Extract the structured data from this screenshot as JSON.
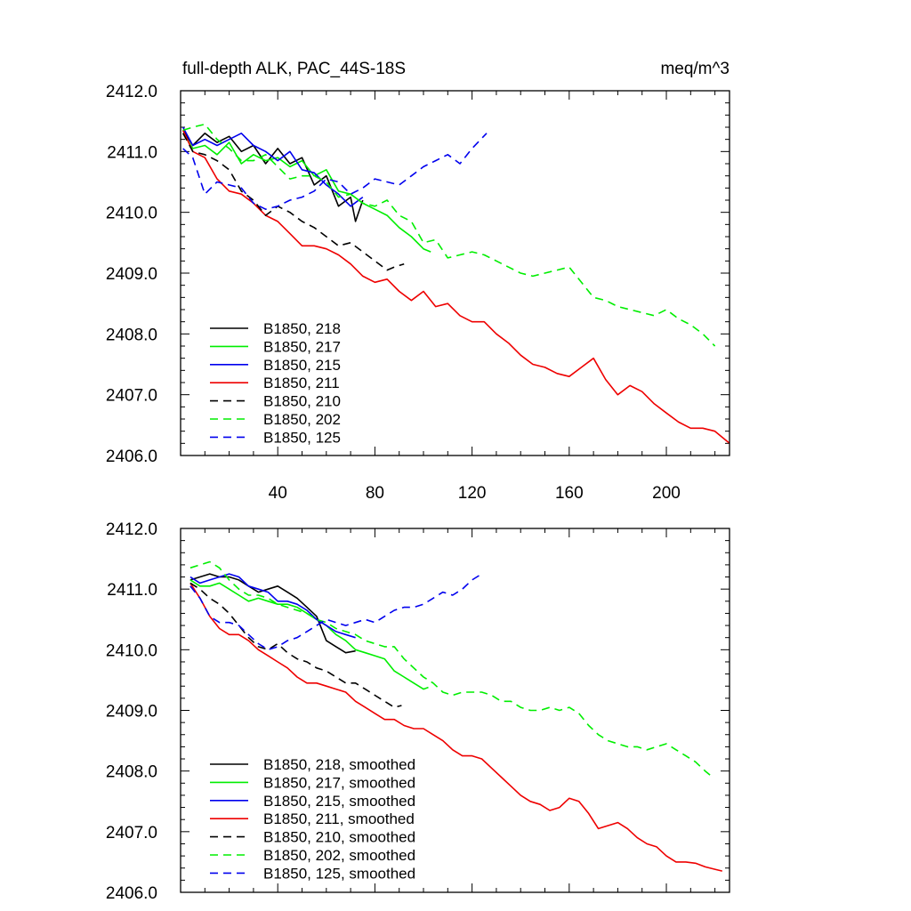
{
  "chart_data": [
    {
      "type": "line",
      "title": "full-depth ALK, PAC_44S-18S",
      "units": "meq/m^3",
      "xlabel": "",
      "ylabel": "",
      "xlim": [
        0,
        226
      ],
      "ylim": [
        2406.0,
        2412.0
      ],
      "xticks": [
        40,
        80,
        120,
        160,
        200
      ],
      "xtick_labels": [
        "40",
        "80",
        "120",
        "160",
        "200"
      ],
      "yticks": [
        2406.0,
        2407.0,
        2408.0,
        2409.0,
        2410.0,
        2411.0,
        2412.0
      ],
      "ytick_labels": [
        "2406.0",
        "2407.0",
        "2408.0",
        "2409.0",
        "2410.0",
        "2411.0",
        "2412.0"
      ],
      "legend_position": "bottom-left",
      "grid": false,
      "series": [
        {
          "name": "B1850, 218",
          "color": "#000000",
          "dash": "solid",
          "x": [
            1,
            5,
            10,
            15,
            20,
            25,
            30,
            35,
            40,
            45,
            50,
            55,
            60,
            65,
            70,
            72,
            75
          ],
          "y": [
            2411.35,
            2411.1,
            2411.3,
            2411.15,
            2411.25,
            2411.0,
            2411.1,
            2410.8,
            2411.05,
            2410.8,
            2410.9,
            2410.45,
            2410.6,
            2410.1,
            2410.25,
            2409.85,
            2410.2
          ]
        },
        {
          "name": "B1850, 217",
          "color": "#00ee00",
          "dash": "solid",
          "x": [
            1,
            5,
            10,
            15,
            20,
            25,
            30,
            35,
            40,
            45,
            50,
            55,
            60,
            65,
            70,
            75,
            80,
            85,
            90,
            95,
            100,
            103
          ],
          "y": [
            2411.3,
            2411.05,
            2411.1,
            2410.95,
            2411.15,
            2410.8,
            2410.95,
            2410.85,
            2410.9,
            2410.75,
            2410.85,
            2410.6,
            2410.7,
            2410.35,
            2410.3,
            2410.15,
            2410.05,
            2409.95,
            2409.75,
            2409.6,
            2409.4,
            2409.35
          ]
        },
        {
          "name": "B1850, 215",
          "color": "#0000ee",
          "dash": "solid",
          "x": [
            1,
            5,
            10,
            15,
            20,
            25,
            30,
            35,
            40,
            45,
            50,
            55,
            60,
            65,
            70,
            75
          ],
          "y": [
            2411.4,
            2411.1,
            2411.2,
            2411.1,
            2411.2,
            2411.3,
            2411.1,
            2411.0,
            2410.85,
            2411.0,
            2410.7,
            2410.65,
            2410.45,
            2410.3,
            2410.1,
            2410.25
          ]
        },
        {
          "name": "B1850, 211",
          "color": "#ee0000",
          "dash": "solid",
          "x": [
            1,
            5,
            10,
            15,
            20,
            25,
            30,
            35,
            40,
            45,
            50,
            55,
            60,
            65,
            70,
            75,
            80,
            85,
            90,
            95,
            100,
            105,
            110,
            115,
            120,
            125,
            130,
            135,
            140,
            145,
            150,
            155,
            160,
            165,
            170,
            175,
            180,
            185,
            190,
            195,
            200,
            205,
            210,
            215,
            220,
            226
          ],
          "y": [
            2411.35,
            2411.0,
            2410.9,
            2410.55,
            2410.35,
            2410.3,
            2410.15,
            2409.95,
            2409.85,
            2409.65,
            2409.45,
            2409.45,
            2409.4,
            2409.3,
            2409.15,
            2408.95,
            2408.85,
            2408.9,
            2408.7,
            2408.55,
            2408.7,
            2408.45,
            2408.5,
            2408.3,
            2408.2,
            2408.2,
            2408.0,
            2407.85,
            2407.65,
            2407.5,
            2407.45,
            2407.35,
            2407.3,
            2407.45,
            2407.6,
            2407.25,
            2407.0,
            2407.15,
            2407.05,
            2406.85,
            2406.7,
            2406.55,
            2406.45,
            2406.45,
            2406.4,
            2406.2
          ]
        },
        {
          "name": "B1850, 210",
          "color": "#000000",
          "dash": "dashed",
          "x": [
            1,
            5,
            10,
            15,
            20,
            25,
            30,
            35,
            40,
            45,
            50,
            55,
            60,
            65,
            70,
            75,
            80,
            85,
            88,
            92
          ],
          "y": [
            2411.3,
            2411.0,
            2410.95,
            2410.85,
            2410.7,
            2410.35,
            2410.2,
            2409.95,
            2410.1,
            2410.0,
            2409.85,
            2409.75,
            2409.6,
            2409.45,
            2409.5,
            2409.35,
            2409.2,
            2409.05,
            2409.1,
            2409.15
          ]
        },
        {
          "name": "B1850, 202",
          "color": "#00ee00",
          "dash": "dashed",
          "x": [
            1,
            5,
            10,
            15,
            20,
            25,
            30,
            35,
            40,
            45,
            50,
            55,
            60,
            65,
            70,
            75,
            80,
            85,
            90,
            95,
            100,
            105,
            110,
            115,
            120,
            125,
            130,
            135,
            140,
            145,
            150,
            155,
            160,
            165,
            170,
            175,
            180,
            185,
            190,
            195,
            200,
            205,
            210,
            215,
            220
          ],
          "y": [
            2411.35,
            2411.4,
            2411.45,
            2411.2,
            2411.05,
            2410.85,
            2410.85,
            2410.95,
            2410.75,
            2410.55,
            2410.6,
            2410.6,
            2410.5,
            2410.25,
            2410.3,
            2410.15,
            2410.1,
            2410.2,
            2409.95,
            2409.85,
            2409.5,
            2409.55,
            2409.25,
            2409.3,
            2409.35,
            2409.3,
            2409.2,
            2409.1,
            2409.0,
            2408.95,
            2409.0,
            2409.05,
            2409.1,
            2408.85,
            2408.6,
            2408.55,
            2408.45,
            2408.4,
            2408.35,
            2408.3,
            2408.4,
            2408.25,
            2408.15,
            2408.0,
            2407.8
          ]
        },
        {
          "name": "B1850, 125",
          "color": "#0000ee",
          "dash": "dashed",
          "x": [
            1,
            5,
            10,
            15,
            20,
            25,
            30,
            35,
            40,
            45,
            50,
            55,
            60,
            65,
            70,
            75,
            80,
            85,
            90,
            95,
            100,
            105,
            110,
            115,
            120,
            126
          ],
          "y": [
            2411.05,
            2410.9,
            2410.3,
            2410.5,
            2410.45,
            2410.4,
            2410.15,
            2410.05,
            2410.1,
            2410.2,
            2410.25,
            2410.35,
            2410.55,
            2410.5,
            2410.3,
            2410.4,
            2410.55,
            2410.5,
            2410.45,
            2410.6,
            2410.75,
            2410.85,
            2410.95,
            2410.8,
            2411.05,
            2411.3
          ]
        }
      ]
    },
    {
      "type": "line",
      "title": "",
      "xlabel": "",
      "ylabel": "",
      "xlim": [
        0,
        226
      ],
      "ylim": [
        2406.0,
        2412.0
      ],
      "xticks": [
        40,
        80,
        120,
        160,
        200
      ],
      "xtick_labels": [],
      "yticks": [
        2406.0,
        2407.0,
        2408.0,
        2409.0,
        2410.0,
        2411.0,
        2412.0
      ],
      "ytick_labels": [
        "2406.0",
        "2407.0",
        "2408.0",
        "2409.0",
        "2410.0",
        "2411.0",
        "2412.0"
      ],
      "legend_position": "bottom-left",
      "grid": false,
      "series": [
        {
          "name": "B1850, 218, smoothed",
          "color": "#000000",
          "dash": "solid",
          "x": [
            4,
            8,
            12,
            16,
            20,
            24,
            28,
            32,
            36,
            40,
            44,
            48,
            52,
            56,
            60,
            64,
            68,
            72
          ],
          "y": [
            2411.15,
            2411.2,
            2411.25,
            2411.2,
            2411.2,
            2411.15,
            2411.05,
            2410.95,
            2411.0,
            2411.05,
            2410.95,
            2410.85,
            2410.7,
            2410.55,
            2410.15,
            2410.05,
            2409.95,
            2409.98
          ]
        },
        {
          "name": "B1850, 217, smoothed",
          "color": "#00ee00",
          "dash": "solid",
          "x": [
            4,
            8,
            12,
            16,
            20,
            24,
            28,
            32,
            36,
            40,
            44,
            48,
            52,
            56,
            60,
            64,
            68,
            72,
            76,
            80,
            84,
            88,
            92,
            96,
            100,
            102
          ],
          "y": [
            2411.15,
            2411.05,
            2411.05,
            2411.1,
            2411.0,
            2410.9,
            2410.8,
            2410.85,
            2410.8,
            2410.75,
            2410.75,
            2410.7,
            2410.6,
            2410.5,
            2410.4,
            2410.25,
            2410.15,
            2410.0,
            2409.95,
            2409.9,
            2409.85,
            2409.65,
            2409.55,
            2409.45,
            2409.35,
            2409.38
          ]
        },
        {
          "name": "B1850, 215, smoothed",
          "color": "#0000ee",
          "dash": "solid",
          "x": [
            4,
            8,
            12,
            16,
            20,
            24,
            28,
            32,
            36,
            40,
            44,
            48,
            52,
            56,
            60,
            64,
            68,
            72
          ],
          "y": [
            2411.2,
            2411.1,
            2411.15,
            2411.2,
            2411.25,
            2411.2,
            2411.05,
            2411.0,
            2410.95,
            2410.8,
            2410.8,
            2410.75,
            2410.65,
            2410.5,
            2410.4,
            2410.3,
            2410.25,
            2410.2
          ]
        },
        {
          "name": "B1850, 211, smoothed",
          "color": "#ee0000",
          "dash": "solid",
          "x": [
            4,
            8,
            12,
            16,
            20,
            24,
            28,
            32,
            36,
            40,
            44,
            48,
            52,
            56,
            60,
            64,
            68,
            72,
            76,
            80,
            84,
            88,
            92,
            96,
            100,
            104,
            108,
            112,
            116,
            120,
            124,
            128,
            132,
            136,
            140,
            144,
            148,
            152,
            156,
            160,
            164,
            168,
            172,
            176,
            180,
            184,
            188,
            192,
            196,
            200,
            204,
            208,
            212,
            216,
            220,
            223
          ],
          "y": [
            2411.1,
            2410.85,
            2410.55,
            2410.35,
            2410.25,
            2410.25,
            2410.15,
            2410.0,
            2409.9,
            2409.8,
            2409.7,
            2409.55,
            2409.45,
            2409.45,
            2409.4,
            2409.35,
            2409.3,
            2409.15,
            2409.05,
            2408.95,
            2408.85,
            2408.85,
            2408.75,
            2408.7,
            2408.7,
            2408.6,
            2408.5,
            2408.35,
            2408.25,
            2408.25,
            2408.2,
            2408.05,
            2407.9,
            2407.75,
            2407.6,
            2407.5,
            2407.45,
            2407.35,
            2407.4,
            2407.55,
            2407.5,
            2407.3,
            2407.05,
            2407.1,
            2407.15,
            2407.05,
            2406.9,
            2406.8,
            2406.75,
            2406.6,
            2406.5,
            2406.5,
            2406.48,
            2406.42,
            2406.38,
            2406.35
          ]
        },
        {
          "name": "B1850, 210, smoothed",
          "color": "#000000",
          "dash": "dashed",
          "x": [
            4,
            8,
            12,
            16,
            20,
            24,
            28,
            32,
            36,
            40,
            44,
            48,
            52,
            56,
            60,
            64,
            68,
            72,
            76,
            80,
            84,
            88,
            91
          ],
          "y": [
            2411.1,
            2411.0,
            2410.85,
            2410.75,
            2410.6,
            2410.4,
            2410.2,
            2410.05,
            2410.0,
            2410.1,
            2409.95,
            2409.85,
            2409.8,
            2409.7,
            2409.65,
            2409.55,
            2409.45,
            2409.45,
            2409.35,
            2409.25,
            2409.15,
            2409.05,
            2409.08
          ]
        },
        {
          "name": "B1850, 202, smoothed",
          "color": "#00ee00",
          "dash": "dashed",
          "x": [
            4,
            8,
            12,
            16,
            20,
            24,
            28,
            32,
            36,
            40,
            44,
            48,
            52,
            56,
            60,
            64,
            68,
            72,
            76,
            80,
            84,
            88,
            92,
            96,
            100,
            104,
            108,
            112,
            116,
            120,
            124,
            128,
            132,
            136,
            140,
            144,
            148,
            152,
            156,
            160,
            164,
            168,
            172,
            176,
            180,
            184,
            188,
            192,
            196,
            200,
            204,
            208,
            212,
            216,
            219
          ],
          "y": [
            2411.35,
            2411.4,
            2411.45,
            2411.35,
            2411.15,
            2411.0,
            2410.9,
            2410.9,
            2410.85,
            2410.75,
            2410.7,
            2410.65,
            2410.6,
            2410.5,
            2410.45,
            2410.35,
            2410.3,
            2410.25,
            2410.15,
            2410.1,
            2410.05,
            2410.05,
            2409.85,
            2409.7,
            2409.55,
            2409.45,
            2409.3,
            2409.25,
            2409.3,
            2409.3,
            2409.3,
            2409.25,
            2409.15,
            2409.15,
            2409.05,
            2409.0,
            2409.0,
            2409.05,
            2409.0,
            2409.05,
            2408.95,
            2408.75,
            2408.6,
            2408.5,
            2408.45,
            2408.4,
            2408.4,
            2408.35,
            2408.4,
            2408.45,
            2408.35,
            2408.25,
            2408.15,
            2408.0,
            2407.9
          ]
        },
        {
          "name": "B1850, 125, smoothed",
          "color": "#0000ee",
          "dash": "dashed",
          "x": [
            4,
            8,
            12,
            16,
            20,
            24,
            28,
            32,
            36,
            40,
            44,
            48,
            52,
            56,
            60,
            64,
            68,
            72,
            76,
            80,
            84,
            88,
            92,
            96,
            100,
            104,
            108,
            112,
            116,
            120,
            124
          ],
          "y": [
            2411.05,
            2410.85,
            2410.55,
            2410.45,
            2410.45,
            2410.4,
            2410.25,
            2410.1,
            2410.0,
            2410.05,
            2410.15,
            2410.2,
            2410.3,
            2410.4,
            2410.5,
            2410.45,
            2410.4,
            2410.45,
            2410.5,
            2410.45,
            2410.55,
            2410.65,
            2410.7,
            2410.7,
            2410.75,
            2410.85,
            2410.95,
            2410.9,
            2411.0,
            2411.15,
            2411.25
          ]
        }
      ]
    }
  ]
}
